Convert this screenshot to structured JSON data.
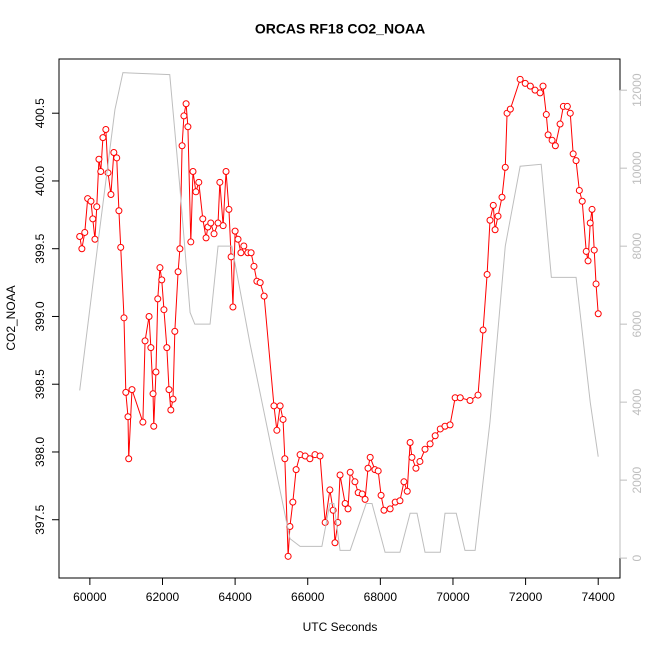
{
  "chart_data": {
    "type": "line",
    "title": "ORCAS RF18 CO2_NOAA",
    "x_label": "UTC Seconds",
    "y_label": "CO2_NOAA",
    "xlim": [
      59150,
      74600
    ],
    "xticks": [
      60000,
      62000,
      64000,
      66000,
      68000,
      70000,
      72000,
      74000
    ],
    "ylim": [
      397.07,
      400.9
    ],
    "yticks": [
      397.5,
      {
        "value": 398,
        "label": "398.0"
      },
      398.5,
      {
        "value": 399,
        "label": "399.0"
      },
      399.5,
      {
        "value": 400,
        "label": "400.0"
      },
      400.5
    ],
    "y2lim": [
      -510,
      12800
    ],
    "y2ticks": [
      0,
      2000,
      4000,
      6000,
      8000,
      10000,
      12000
    ],
    "series": [
      {
        "color": "#ff0000",
        "markers": true,
        "x": [
          59720,
          59780,
          59860,
          59940,
          60030,
          60080,
          60140,
          60190,
          60250,
          60300,
          60360,
          60440,
          60500,
          60580,
          60660,
          60740,
          60800,
          60850,
          60940,
          60990,
          61050,
          61070,
          61160,
          61460,
          61520,
          61630,
          61680,
          61740,
          61760,
          61820,
          61870,
          61930,
          61980,
          62040,
          62120,
          62180,
          62230,
          62290,
          62340,
          62430,
          62480,
          62540,
          62590,
          62650,
          62700,
          62780,
          62840,
          62920,
          63000,
          63110,
          63200,
          63250,
          63330,
          63420,
          63530,
          63580,
          63670,
          63750,
          63830,
          63890,
          63940,
          64000,
          64080,
          64160,
          64240,
          64350,
          64440,
          64520,
          64600,
          64690,
          64800,
          65070,
          65150,
          65240,
          65320,
          65370,
          65460,
          65510,
          65590,
          65680,
          65790,
          65930,
          66060,
          66200,
          66340,
          66480,
          66610,
          66700,
          66750,
          66830,
          66890,
          67030,
          67110,
          67170,
          67300,
          67390,
          67500,
          67580,
          67660,
          67720,
          67850,
          67940,
          68020,
          68100,
          68270,
          68410,
          68540,
          68650,
          68740,
          68820,
          68870,
          68980,
          69090,
          69230,
          69370,
          69510,
          69650,
          69780,
          69920,
          70060,
          70200,
          70470,
          70690,
          70830,
          70940,
          71020,
          71110,
          71160,
          71240,
          71350,
          71440,
          71490,
          71580,
          71850,
          71990,
          72130,
          72260,
          72400,
          72480,
          72570,
          72620,
          72730,
          72820,
          72950,
          73040,
          73150,
          73230,
          73310,
          73390,
          73480,
          73560,
          73670,
          73720,
          73780,
          73830,
          73890,
          73940,
          74000
        ],
        "values": [
          399.59,
          399.5,
          399.62,
          399.87,
          399.85,
          399.72,
          399.57,
          399.81,
          400.16,
          400.07,
          400.32,
          400.38,
          400.06,
          399.9,
          400.21,
          400.17,
          399.78,
          399.51,
          398.99,
          398.44,
          398.26,
          397.95,
          398.46,
          398.22,
          398.82,
          399.0,
          398.77,
          398.43,
          398.19,
          398.59,
          399.13,
          399.36,
          399.27,
          399.05,
          398.77,
          398.46,
          398.31,
          398.39,
          398.89,
          399.33,
          399.5,
          400.26,
          400.48,
          400.57,
          400.4,
          399.55,
          400.07,
          399.92,
          399.99,
          399.72,
          399.58,
          399.66,
          399.69,
          399.61,
          399.69,
          399.99,
          399.67,
          400.07,
          399.79,
          399.44,
          399.07,
          399.63,
          399.57,
          399.47,
          399.52,
          399.47,
          399.47,
          399.37,
          399.26,
          399.25,
          399.15,
          398.34,
          398.16,
          398.34,
          398.24,
          397.95,
          397.23,
          397.45,
          397.63,
          397.87,
          397.98,
          397.97,
          397.95,
          397.98,
          397.97,
          397.48,
          397.72,
          397.57,
          397.33,
          397.48,
          397.83,
          397.62,
          397.58,
          397.85,
          397.78,
          397.7,
          397.69,
          397.65,
          397.88,
          397.96,
          397.87,
          397.86,
          397.68,
          397.57,
          397.58,
          397.63,
          397.64,
          397.78,
          397.71,
          398.07,
          397.96,
          397.88,
          397.93,
          398.02,
          398.06,
          398.12,
          398.17,
          398.19,
          398.2,
          398.4,
          398.4,
          398.38,
          398.42,
          398.9,
          399.31,
          399.71,
          399.82,
          399.64,
          399.74,
          399.88,
          400.1,
          400.5,
          400.53,
          400.75,
          400.72,
          400.7,
          400.67,
          400.65,
          400.7,
          400.49,
          400.34,
          400.3,
          400.26,
          400.42,
          400.55,
          400.55,
          400.5,
          400.2,
          400.15,
          399.93,
          399.85,
          399.48,
          399.41,
          399.69,
          399.79,
          399.49,
          399.24,
          399.02
        ]
      },
      {
        "color": "#bebebe",
        "axis": "y2",
        "markers": false,
        "x": [
          59720,
          60280,
          60690,
          60910,
          62200,
          62480,
          62760,
          62890,
          63310,
          63530,
          63910,
          64410,
          64960,
          65510,
          65790,
          66390,
          66610,
          66720,
          66890,
          67170,
          67610,
          67770,
          68130,
          68540,
          68820,
          69010,
          69230,
          69650,
          69780,
          70090,
          70330,
          70610,
          71020,
          71440,
          71850,
          72430,
          72710,
          73390,
          73780,
          74000
        ],
        "values": [
          4300,
          8500,
          11500,
          12450,
          12400,
          9500,
          6300,
          6000,
          6000,
          8000,
          8000,
          5500,
          3000,
          500,
          300,
          300,
          1400,
          1400,
          200,
          200,
          1400,
          1400,
          150,
          150,
          1150,
          1150,
          150,
          150,
          1150,
          1150,
          200,
          200,
          3500,
          8000,
          10050,
          10100,
          7200,
          7200,
          4000,
          2600
        ]
      }
    ]
  }
}
